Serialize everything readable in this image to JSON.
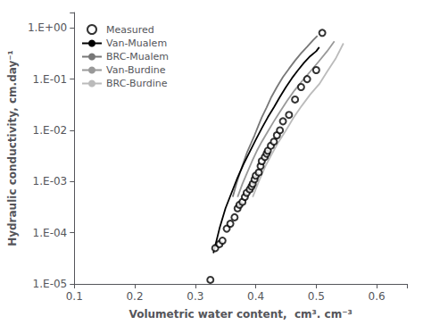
{
  "chart_data": {
    "type": "line",
    "xlabel": "Volumetric water content,  cm³. cm⁻³",
    "ylabel": "Hydraulic conductivity, cm.day⁻¹",
    "xlim": [
      0.1,
      0.65
    ],
    "ylim": [
      1e-05,
      2.0
    ],
    "xticks": [
      0.1,
      0.2,
      0.3,
      0.4,
      0.5,
      0.6
    ],
    "yticks": [
      {
        "value": 1e-05,
        "label": "1.E-05"
      },
      {
        "value": 0.0001,
        "label": "1.E-04"
      },
      {
        "value": 0.001,
        "label": "1.E-03"
      },
      {
        "value": 0.01,
        "label": "1.E-02"
      },
      {
        "value": 0.1,
        "label": "1.E-01"
      },
      {
        "value": 1.0,
        "label": "1.E+00"
      }
    ],
    "log": "y",
    "grid": false,
    "legend": "upper left",
    "series": [
      {
        "name": "BRC-Burdine",
        "type": "line",
        "line_style": "solid",
        "color": "#bbbbbb",
        "x": [
          0.395,
          0.405,
          0.416,
          0.427,
          0.438,
          0.45,
          0.463,
          0.476,
          0.49,
          0.505,
          0.518,
          0.532,
          0.545
        ],
        "values": [
          0.0005,
          0.001,
          0.002,
          0.0035,
          0.006,
          0.01,
          0.018,
          0.03,
          0.05,
          0.08,
          0.14,
          0.25,
          0.5
        ]
      },
      {
        "name": "Van-Burdine",
        "type": "line",
        "line_style": "solid",
        "color": "#999999",
        "x": [
          0.37,
          0.378,
          0.386,
          0.394,
          0.402,
          0.41,
          0.42,
          0.43,
          0.44,
          0.452,
          0.464,
          0.476,
          0.49,
          0.504,
          0.518,
          0.53
        ],
        "values": [
          0.0005,
          0.0009,
          0.0015,
          0.0025,
          0.004,
          0.006,
          0.0095,
          0.015,
          0.023,
          0.038,
          0.06,
          0.09,
          0.14,
          0.22,
          0.35,
          0.55
        ]
      },
      {
        "name": "BRC-Mualem",
        "type": "line",
        "line_style": "solid",
        "color": "#777777",
        "x": [
          0.362,
          0.368,
          0.374,
          0.38,
          0.386,
          0.392,
          0.398,
          0.404,
          0.41,
          0.418,
          0.426,
          0.435,
          0.445,
          0.455,
          0.465,
          0.475,
          0.485,
          0.495,
          0.502
        ],
        "values": [
          0.0005,
          0.0009,
          0.0015,
          0.0024,
          0.0038,
          0.0055,
          0.008,
          0.012,
          0.018,
          0.028,
          0.045,
          0.07,
          0.11,
          0.16,
          0.23,
          0.32,
          0.43,
          0.58,
          0.7
        ]
      },
      {
        "name": "Van-Mualem",
        "type": "line",
        "line_style": "solid",
        "color": "#000000",
        "x": [
          0.33,
          0.34,
          0.35,
          0.36,
          0.37,
          0.38,
          0.39,
          0.4,
          0.41,
          0.42,
          0.43,
          0.44,
          0.45,
          0.46,
          0.47,
          0.48,
          0.49,
          0.5,
          0.505
        ],
        "values": [
          4e-05,
          0.00012,
          0.0003,
          0.0006,
          0.0012,
          0.0022,
          0.0038,
          0.0065,
          0.011,
          0.018,
          0.028,
          0.045,
          0.07,
          0.105,
          0.15,
          0.21,
          0.28,
          0.35,
          0.42
        ]
      },
      {
        "name": "Measured",
        "type": "scatter",
        "marker": "circle",
        "color": "#000000",
        "x": [
          0.325,
          0.333,
          0.34,
          0.345,
          0.352,
          0.358,
          0.365,
          0.37,
          0.373,
          0.378,
          0.382,
          0.385,
          0.39,
          0.393,
          0.395,
          0.398,
          0.4,
          0.405,
          0.408,
          0.41,
          0.415,
          0.418,
          0.42,
          0.425,
          0.43,
          0.435,
          0.44,
          0.445,
          0.455,
          0.465,
          0.475,
          0.485,
          0.5,
          0.51
        ],
        "values": [
          1.2e-05,
          5e-05,
          6e-05,
          7e-05,
          0.00012,
          0.00015,
          0.0002,
          0.0003,
          0.00035,
          0.0004,
          0.0005,
          0.0006,
          0.0007,
          0.0008,
          0.0009,
          0.0011,
          0.0013,
          0.0015,
          0.002,
          0.0025,
          0.003,
          0.0035,
          0.004,
          0.005,
          0.006,
          0.008,
          0.01,
          0.015,
          0.02,
          0.04,
          0.07,
          0.1,
          0.15,
          0.8
        ]
      }
    ]
  }
}
